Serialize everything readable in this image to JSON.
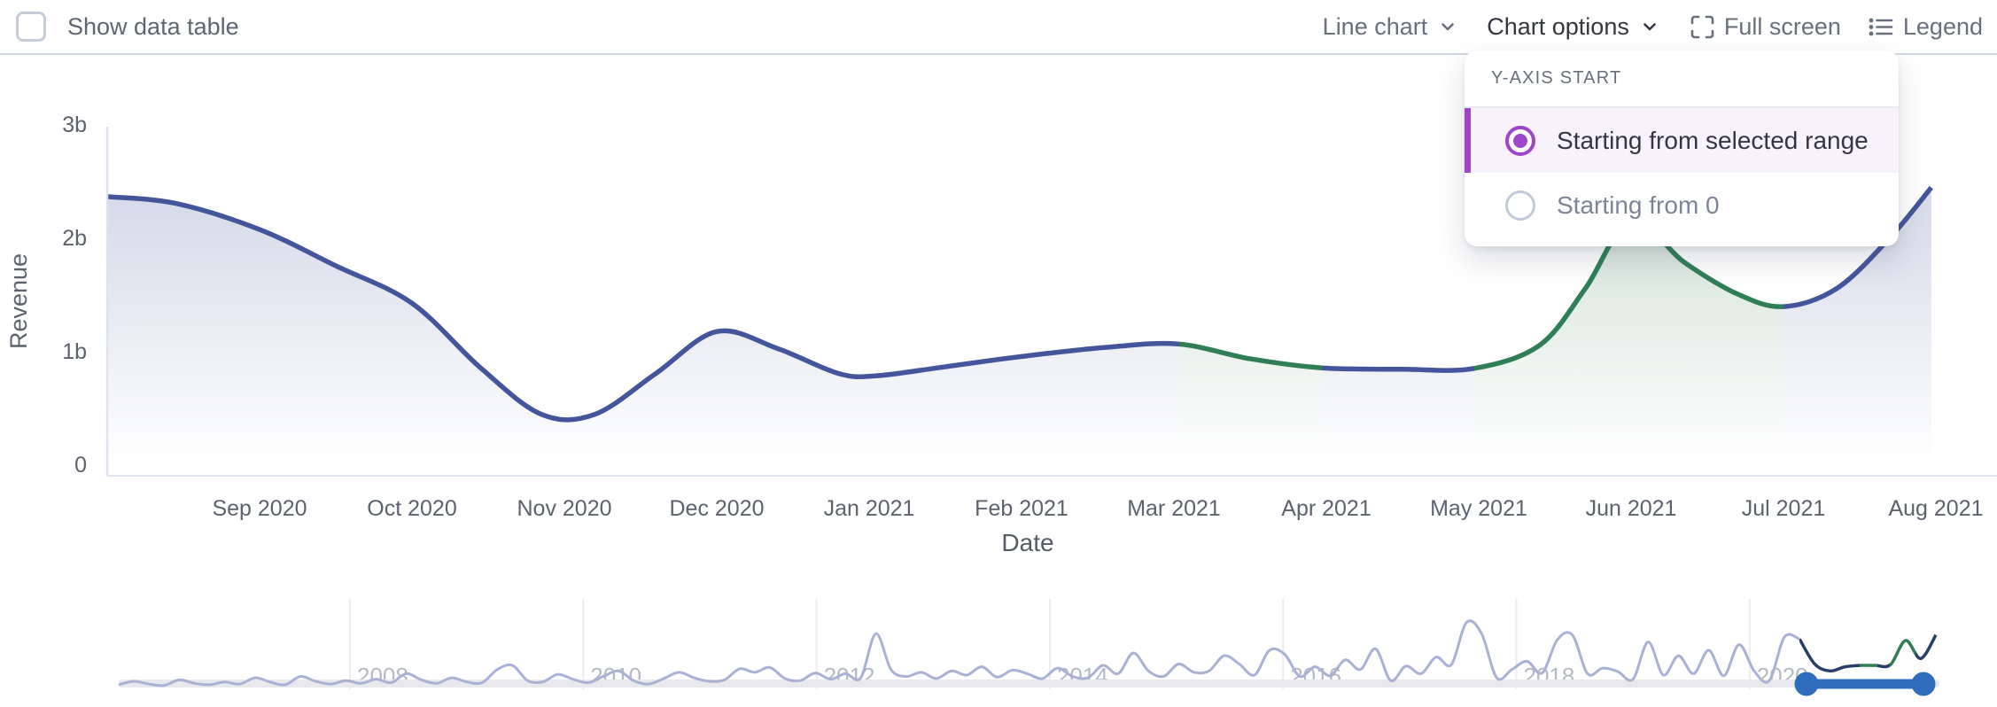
{
  "header": {
    "show_data_table_label": "Show data table",
    "chart_type_label": "Line chart",
    "chart_options_label": "Chart options",
    "full_screen_label": "Full screen",
    "legend_label": "Legend"
  },
  "dropdown": {
    "title": "Y-AXIS START",
    "options": [
      {
        "label": "Starting from selected range",
        "selected": true
      },
      {
        "label": "Starting from 0",
        "selected": false
      }
    ]
  },
  "colors": {
    "line_blue": "#44569b",
    "line_green": "#2f7e56",
    "nav_line": "#a9b2d5",
    "nav_dark": "#2a3e68",
    "brush_blue": "#2e6cbe",
    "accent_purple": "#9f45c9",
    "axis_text": "#5d636e",
    "year_text": "#b5b9c3",
    "gridline": "#ededf1",
    "axis_line": "#dfe3f0",
    "track": "#e9e9ed"
  },
  "chart_data": {
    "type": "line",
    "title": "",
    "xlabel": "Date",
    "ylabel": "Revenue",
    "ylim": [
      0,
      3
    ],
    "y_ticks": [
      {
        "label": "0",
        "value": 0
      },
      {
        "label": "1b",
        "value": 1
      },
      {
        "label": "2b",
        "value": 2
      },
      {
        "label": "3b",
        "value": 3
      }
    ],
    "x_ticks": [
      "Sep 2020",
      "Oct 2020",
      "Nov 2020",
      "Dec 2020",
      "Jan 2021",
      "Feb 2021",
      "Mar 2021",
      "Apr 2021",
      "May 2021",
      "Jun 2021",
      "Jul 2021",
      "Aug 2021"
    ],
    "series": [
      {
        "name": "Revenue",
        "unit": "billions",
        "points": [
          [
            -1.0,
            2.36
          ],
          [
            -0.55,
            2.3
          ],
          [
            0,
            2.07
          ],
          [
            0.5,
            1.75
          ],
          [
            1.0,
            1.42
          ],
          [
            1.45,
            0.85
          ],
          [
            1.85,
            0.44
          ],
          [
            2.2,
            0.44
          ],
          [
            2.6,
            0.8
          ],
          [
            3.0,
            1.17
          ],
          [
            3.4,
            1.02
          ],
          [
            3.8,
            0.8
          ],
          [
            4.05,
            0.78
          ],
          [
            4.5,
            0.86
          ],
          [
            5.0,
            0.95
          ],
          [
            5.55,
            1.03
          ],
          [
            6.03,
            1.06
          ],
          [
            6.5,
            0.93
          ],
          [
            6.97,
            0.85
          ],
          [
            7.5,
            0.838
          ],
          [
            7.97,
            0.845
          ],
          [
            8.4,
            1.05
          ],
          [
            8.7,
            1.55
          ],
          [
            9.0,
            2.15
          ],
          [
            9.35,
            1.78
          ],
          [
            9.7,
            1.5
          ],
          [
            10.0,
            1.39
          ],
          [
            10.35,
            1.55
          ],
          [
            10.7,
            2.0
          ],
          [
            10.97,
            2.44
          ]
        ]
      }
    ],
    "highlighted_ranges": [
      [
        "Mar 2021",
        "Apr 2021"
      ],
      [
        "May 2021",
        "Jul 2021"
      ]
    ],
    "legend": "hidden",
    "grid": "off"
  },
  "navigator": {
    "year_ticks": [
      2008,
      2010,
      2012,
      2014,
      2016,
      2018,
      2020
    ],
    "selection": {
      "from": "Aug 2020",
      "to": "Aug 2021"
    },
    "values": [
      0.4,
      0.9,
      0.5,
      0.3,
      1.1,
      0.6,
      0.4,
      0.8,
      0.5,
      1.4,
      0.8,
      0.4,
      1.6,
      0.9,
      0.5,
      1.0,
      0.6,
      1.2,
      0.7,
      2.0,
      1.1,
      0.6,
      1.4,
      0.8,
      0.7,
      2.6,
      3.2,
      1.0,
      0.8,
      1.9,
      1.2,
      0.7,
      1.6,
      2.4,
      1.0,
      0.5,
      1.3,
      2.2,
      1.4,
      0.9,
      1.1,
      2.7,
      2.2,
      2.9,
      1.3,
      1.0,
      2.1,
      1.2,
      2.0,
      1.4,
      7.8,
      2.6,
      1.6,
      2.2,
      1.3,
      2.4,
      1.8,
      3.0,
      1.5,
      2.5,
      2.0,
      1.3,
      2.8,
      1.6,
      1.4,
      3.2,
      2.0,
      5.0,
      2.4,
      1.6,
      3.4,
      2.2,
      2.4,
      4.6,
      3.4,
      1.8,
      5.4,
      4.8,
      1.6,
      3.0,
      1.7,
      4.0,
      2.6,
      5.6,
      1.0,
      3.1,
      2.0,
      4.4,
      3.3,
      9.4,
      7.8,
      1.4,
      2.6,
      3.8,
      2.1,
      6.9,
      7.6,
      2.0,
      2.8,
      2.3,
      1.2,
      6.6,
      1.8,
      4.6,
      2.0,
      5.4,
      1.7,
      6.2,
      2.4,
      1.0,
      7.3,
      7.0,
      3.4,
      2.4,
      3.0,
      3.2,
      3.2,
      3.3,
      6.8,
      4.2,
      7.6
    ],
    "selection_start_index": 111,
    "selection_color_segments": [
      [
        2031,
        2099,
        "navy"
      ],
      [
        2099,
        2119,
        "green"
      ],
      [
        2119,
        2133,
        "navy"
      ],
      [
        2133,
        2162,
        "green"
      ],
      [
        2162,
        2254,
        "navy"
      ]
    ]
  }
}
